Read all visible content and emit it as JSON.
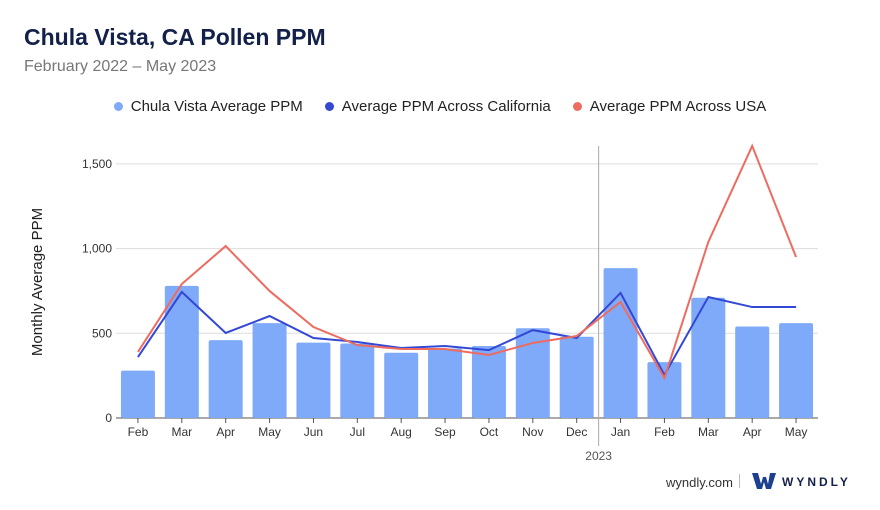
{
  "header": {
    "title": "Chula Vista, CA Pollen PPM",
    "subtitle": "February 2022 – May 2023"
  },
  "footer": {
    "url": "wyndly.com",
    "brand": "WYNDLY"
  },
  "chart_data": {
    "type": "bar",
    "title": "Chula Vista, CA Pollen PPM",
    "ylabel": "Monthly Average PPM",
    "xlabel": "",
    "ylim": [
      0,
      1600
    ],
    "yticks": [
      0,
      500,
      1000,
      1500
    ],
    "ytick_labels": [
      "0",
      "500",
      "1,000",
      "1,500"
    ],
    "grid": true,
    "legend_position": "top-center",
    "categories": [
      "Feb",
      "Mar",
      "Apr",
      "May",
      "Jun",
      "Jul",
      "Aug",
      "Sep",
      "Oct",
      "Nov",
      "Dec",
      "Jan",
      "Feb",
      "Mar",
      "Apr",
      "May"
    ],
    "year_divider": {
      "before_index": 11,
      "label": "2023"
    },
    "series": [
      {
        "name": "Chula Vista Average PPM",
        "type": "bar",
        "color": "#7eaaf9",
        "values": [
          280,
          780,
          460,
          560,
          445,
          440,
          385,
          410,
          425,
          530,
          480,
          885,
          330,
          710,
          540,
          560
        ]
      },
      {
        "name": "Average PPM Across California",
        "type": "line",
        "color": "#3348d4",
        "values": [
          360,
          744,
          502,
          602,
          472,
          449,
          413,
          425,
          401,
          519,
          472,
          738,
          254,
          714,
          655,
          655
        ]
      },
      {
        "name": "Average PPM Across USA",
        "type": "line",
        "color": "#ee6b60",
        "values": [
          390,
          791,
          1015,
          750,
          537,
          431,
          407,
          407,
          372,
          443,
          484,
          685,
          236,
          1039,
          1606,
          950
        ]
      }
    ]
  }
}
